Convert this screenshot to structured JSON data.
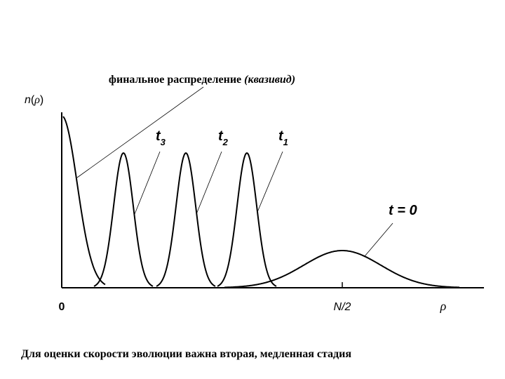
{
  "annotation": {
    "text": "финальное распределение",
    "italic": "(квазивид)"
  },
  "y_label": {
    "n": "n",
    "open": "(",
    "rho": "ρ",
    "close": ")"
  },
  "curve_labels": [
    {
      "base": "t",
      "sub": "3"
    },
    {
      "base": "t",
      "sub": "2"
    },
    {
      "base": "t",
      "sub": "1"
    },
    {
      "text": "t = 0"
    }
  ],
  "x_labels": {
    "origin": "0",
    "half": "N/2",
    "rho": "ρ"
  },
  "caption": "Для оценки скорости эволюции важна вторая, медленная стадия"
}
